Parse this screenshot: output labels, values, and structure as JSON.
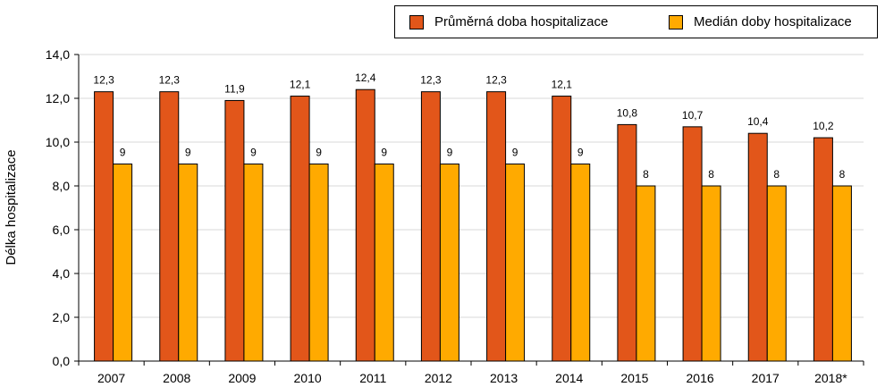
{
  "chart_data": {
    "type": "bar",
    "categories": [
      "2007",
      "2008",
      "2009",
      "2010",
      "2011",
      "2012",
      "2013",
      "2014",
      "2015",
      "2016",
      "2017",
      "2018*"
    ],
    "series": [
      {
        "name": "Průměrná doba hospitalizace",
        "values": [
          12.3,
          12.3,
          11.9,
          12.1,
          12.4,
          12.3,
          12.3,
          12.1,
          10.8,
          10.7,
          10.4,
          10.2
        ],
        "labels": [
          "12,3",
          "12,3",
          "11,9",
          "12,1",
          "12,4",
          "12,3",
          "12,3",
          "12,1",
          "10,8",
          "10,7",
          "10,4",
          "10,2"
        ],
        "color": "#E2561A"
      },
      {
        "name": "Medián doby hospitalizace",
        "values": [
          9,
          9,
          9,
          9,
          9,
          9,
          9,
          9,
          8,
          8,
          8,
          8
        ],
        "labels": [
          "9",
          "9",
          "9",
          "9",
          "9",
          "9",
          "9",
          "9",
          "8",
          "8",
          "8",
          "8"
        ],
        "color": "#FFAA00"
      }
    ],
    "ylabel": "Délka hospitalizace",
    "xlabel": "",
    "ylim": [
      0,
      14
    ],
    "yticks": [
      0,
      2,
      4,
      6,
      8,
      10,
      12,
      14
    ],
    "ytick_labels": [
      "0,0",
      "2,0",
      "4,0",
      "6,0",
      "8,0",
      "10,0",
      "12,0",
      "14,0"
    ],
    "grid": true,
    "legend_position": "top-right"
  }
}
